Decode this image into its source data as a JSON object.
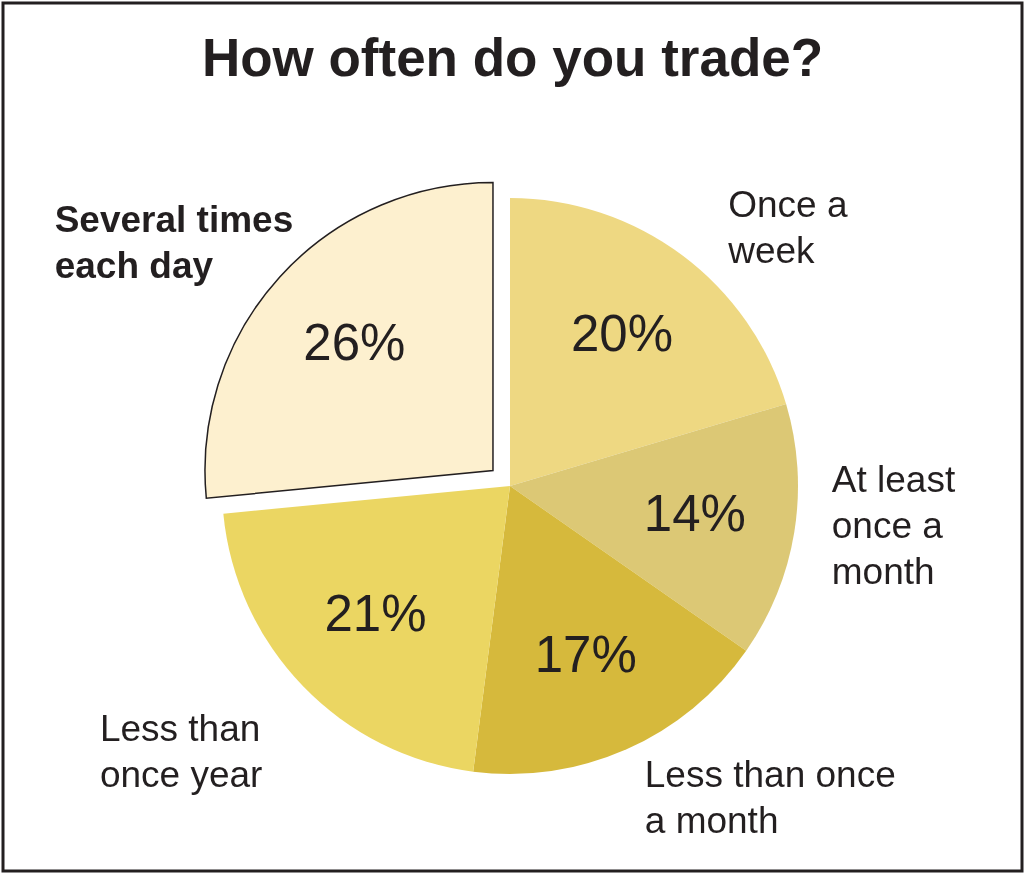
{
  "chart_data": {
    "type": "pie",
    "title": "How often do you trade?",
    "categories": [
      "Once a week",
      "At least once a month",
      "Less than once a month",
      "Less than once year",
      "Several times each day"
    ],
    "values": [
      20,
      14,
      17,
      21,
      26
    ],
    "value_labels": [
      "20%",
      "14%",
      "17%",
      "21%",
      "26%"
    ],
    "colors": [
      "#eed882",
      "#dcc875",
      "#d6b93c",
      "#ebd662",
      "#fdf0cf"
    ]
  }
}
